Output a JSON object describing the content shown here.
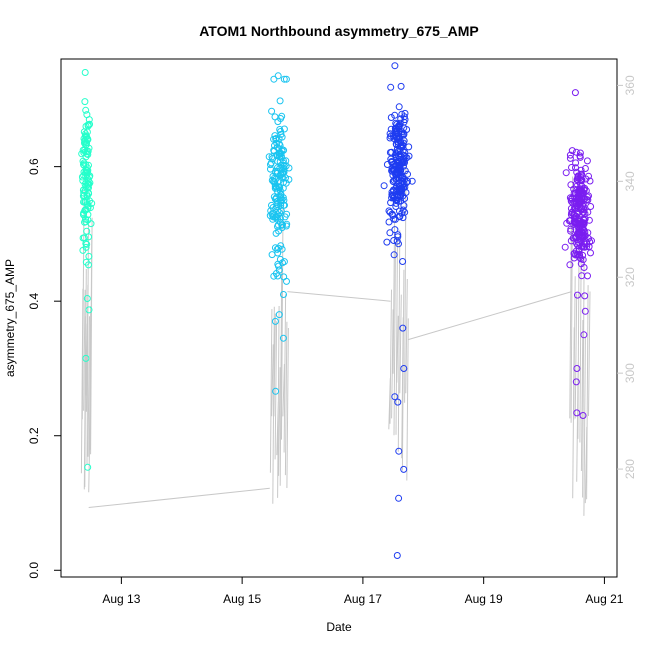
{
  "chart_data": {
    "type": "scatter",
    "title": "ATOM1 Northbound asymmetry_675_AMP",
    "xlabel": "Date",
    "ylabel": "asymmetry_675_AMP",
    "x_range_days": [
      "2017-08-12",
      "2017-08-21"
    ],
    "xlim": [
      "2017-08-12T00:00",
      "2017-08-21T05:00"
    ],
    "ylim": [
      -0.01,
      0.76
    ],
    "y2lim": [
      257.5,
      365.5
    ],
    "x_ticks": [
      {
        "label": "Aug 13",
        "date": "2017-08-13"
      },
      {
        "label": "Aug 15",
        "date": "2017-08-15"
      },
      {
        "label": "Aug 17",
        "date": "2017-08-17"
      },
      {
        "label": "Aug 19",
        "date": "2017-08-19"
      },
      {
        "label": "Aug 21",
        "date": "2017-08-21"
      }
    ],
    "y_ticks": [
      {
        "label": "0.0",
        "value": 0.0
      },
      {
        "label": "0.2",
        "value": 0.2
      },
      {
        "label": "0.4",
        "value": 0.4
      },
      {
        "label": "0.6",
        "value": 0.6
      }
    ],
    "y2_ticks": [
      {
        "label": "280",
        "value": 280
      },
      {
        "label": "300",
        "value": 300
      },
      {
        "label": "320",
        "value": 320
      },
      {
        "label": "340",
        "value": 340
      },
      {
        "label": "360",
        "value": 360
      }
    ],
    "grid": false,
    "legend": "none",
    "colors": {
      "cluster1": "#25ffcb",
      "cluster2": "#1ac4f0",
      "cluster3": "#1e3cf0",
      "cluster4": "#7a1ef0",
      "secondary_line": "#c8c8c8",
      "axis": "#000000"
    },
    "clusters": [
      {
        "start": "2017-08-12T08:00",
        "end": "2017-08-12T12:00",
        "y_center": 0.58,
        "y_spread": 0.1,
        "count": 110,
        "outliers": [
          0.74,
          0.315,
          0.153,
          0.387,
          0.404,
          0.48,
          0.458
        ]
      },
      {
        "start": "2017-08-15T11:00",
        "end": "2017-08-15T18:00",
        "y_center": 0.57,
        "y_spread": 0.1,
        "count": 160,
        "outliers": [
          0.735,
          0.266,
          0.345,
          0.37,
          0.38
        ]
      },
      {
        "start": "2017-08-17T10:00",
        "end": "2017-08-17T18:00",
        "y_center": 0.6,
        "y_spread": 0.09,
        "count": 220,
        "outliers": [
          0.75,
          0.022,
          0.107,
          0.15,
          0.177,
          0.25,
          0.258,
          0.3,
          0.36
        ]
      },
      {
        "start": "2017-08-20T10:00",
        "end": "2017-08-20T18:00",
        "y_center": 0.53,
        "y_spread": 0.08,
        "count": 230,
        "outliers": [
          0.71,
          0.23,
          0.234,
          0.28,
          0.3,
          0.35,
          0.385
        ]
      }
    ],
    "secondary_series": {
      "segments": [
        {
          "from": "2017-08-12T11:00",
          "to": "2017-08-15T11:00",
          "y_from": 272,
          "y_to": 276
        },
        {
          "from": "2017-08-15T18:00",
          "to": "2017-08-17T11:00",
          "y_from": 317,
          "y_to": 315
        },
        {
          "from": "2017-08-17T18:00",
          "to": "2017-08-20T11:00",
          "y_from": 307,
          "y_to": 317
        }
      ],
      "spike_range": [
        270,
        362
      ]
    }
  }
}
